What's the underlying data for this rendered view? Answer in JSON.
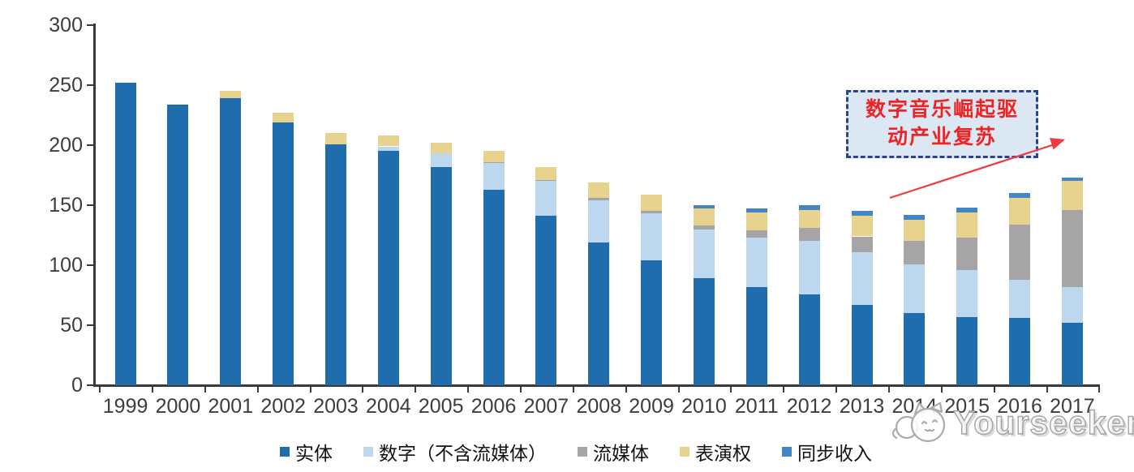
{
  "chart_data": {
    "type": "bar",
    "stacked": true,
    "title": "",
    "xlabel": "",
    "ylabel": "",
    "categories": [
      "1999",
      "2000",
      "2001",
      "2002",
      "2003",
      "2004",
      "2005",
      "2006",
      "2007",
      "2008",
      "2009",
      "2010",
      "2011",
      "2012",
      "2013",
      "2014",
      "2015",
      "2016",
      "2017"
    ],
    "series": [
      {
        "name": "实体",
        "color": "#1f6dad",
        "values": [
          252,
          234,
          239,
          219,
          201,
          195,
          182,
          163,
          141,
          119,
          104,
          89,
          82,
          76,
          67,
          60,
          57,
          56,
          52
        ]
      },
      {
        "name": "数字（不含流媒体）",
        "color": "#bdd7ee",
        "values": [
          0,
          0,
          0,
          0,
          0,
          4,
          11,
          22,
          29,
          35,
          39,
          41,
          41,
          44,
          44,
          41,
          39,
          32,
          30
        ]
      },
      {
        "name": "流媒体",
        "color": "#a5a5a5",
        "values": [
          0,
          0,
          0,
          0,
          0,
          0,
          0,
          1,
          1,
          2,
          2,
          3,
          6,
          11,
          13,
          19,
          27,
          46,
          64
        ]
      },
      {
        "name": "表演权",
        "color": "#e7d38e",
        "values": [
          0,
          0,
          6,
          8,
          9,
          9,
          9,
          9,
          11,
          13,
          14,
          14,
          15,
          15,
          17,
          18,
          21,
          22,
          24
        ]
      },
      {
        "name": "同步收入",
        "color": "#4485c5",
        "values": [
          0,
          0,
          0,
          0,
          0,
          0,
          0,
          0,
          0,
          0,
          0,
          3,
          3,
          4,
          4,
          4,
          4,
          4,
          3
        ]
      }
    ],
    "ylim": [
      0,
      300
    ],
    "y_ticks": [
      0,
      50,
      100,
      150,
      200,
      250,
      300
    ],
    "grid": false,
    "legend_position": "bottom"
  },
  "annotation": {
    "line1": "数字音乐崛起驱",
    "line2": "动产业复苏"
  },
  "watermark": {
    "text": "Yourseeker"
  }
}
